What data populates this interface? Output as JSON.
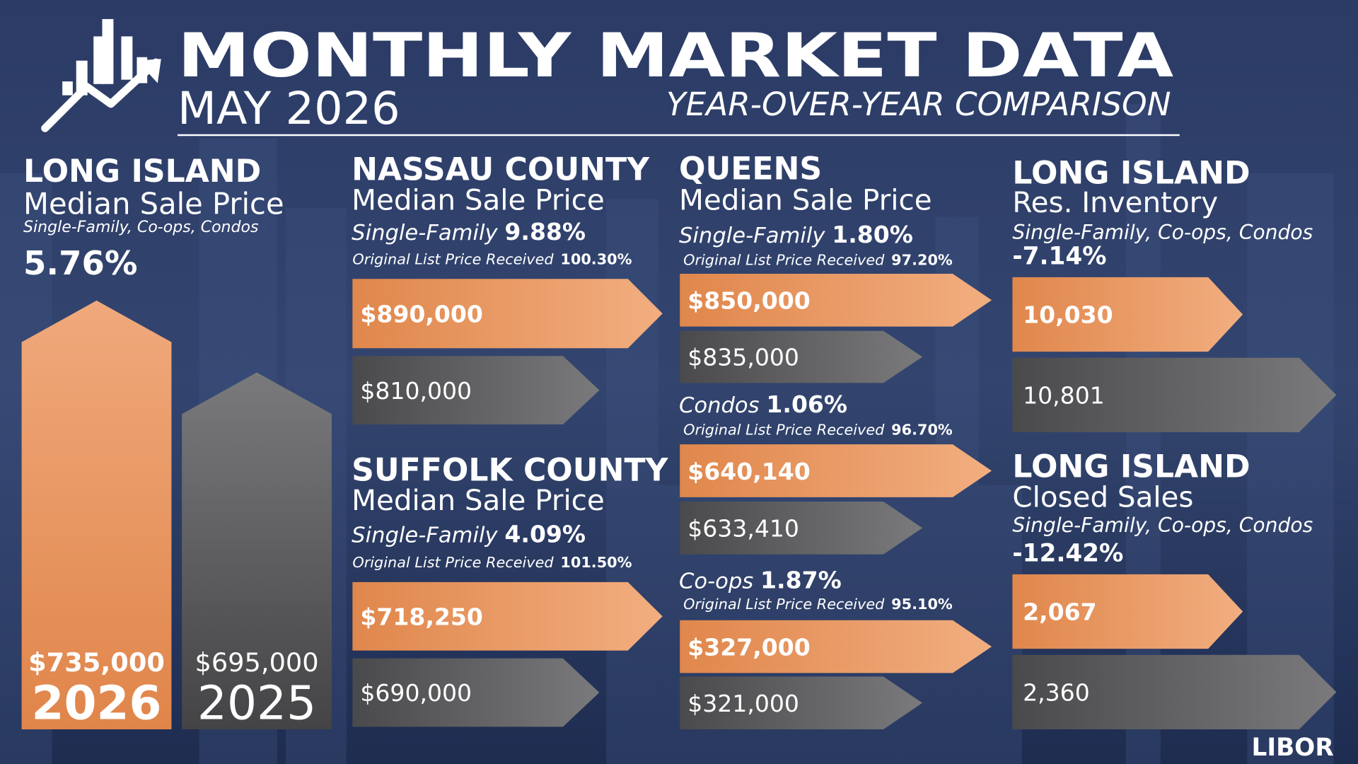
{
  "header": {
    "title": "MONTHLY MARKET DATA",
    "date": "MAY 2026",
    "subtitle": "YEAR-OVER-YEAR COMPARISON"
  },
  "overview": {
    "region": "LONG ISLAND",
    "metric": "Median Sale Price",
    "scope": "Single-Family, Co-ops, Condos",
    "change": "5.76%",
    "bars": [
      {
        "value": "$735,000",
        "year": "2026"
      },
      {
        "value": "$695,000",
        "year": "2025"
      }
    ]
  },
  "counties": [
    {
      "name": "NASSAU COUNTY",
      "metric": "Median Sale Price",
      "segments": [
        {
          "type": "Single-Family",
          "change": "9.88%",
          "olp_label": "Original List Price Received",
          "olp": "100.30%",
          "current": "$890,000",
          "previous": "$810,000"
        }
      ]
    },
    {
      "name": "SUFFOLK COUNTY",
      "metric": "Median Sale Price",
      "segments": [
        {
          "type": "Single-Family",
          "change": "4.09%",
          "olp_label": "Original List Price Received",
          "olp": "101.50%",
          "current": "$718,250",
          "previous": "$690,000"
        }
      ]
    },
    {
      "name": "QUEENS",
      "metric": "Median Sale Price",
      "segments": [
        {
          "type": "Single-Family",
          "change": "1.80%",
          "olp_label": "Original List Price Received",
          "olp": "97.20%",
          "current": "$850,000",
          "previous": "$835,000"
        },
        {
          "type": "Condos",
          "change": "1.06%",
          "olp_label": "Original List Price Received",
          "olp": "96.70%",
          "current": "$640,140",
          "previous": "$633,410"
        },
        {
          "type": "Co-ops",
          "change": "1.87%",
          "olp_label": "Original List Price Received",
          "olp": "95.10%",
          "current": "$327,000",
          "previous": "$321,000"
        }
      ]
    }
  ],
  "inventory": {
    "region": "LONG ISLAND",
    "metric": "Res. Inventory",
    "scope": "Single-Family, Co-ops, Condos",
    "change": "-7.14%",
    "current": "10,030",
    "previous": "10,801"
  },
  "closed_sales": {
    "region": "LONG ISLAND",
    "metric": "Closed Sales",
    "scope": "Single-Family, Co-ops, Condos",
    "change": "-12.42%",
    "current": "2,067",
    "previous": "2,360"
  },
  "brand": "LIBOR"
}
